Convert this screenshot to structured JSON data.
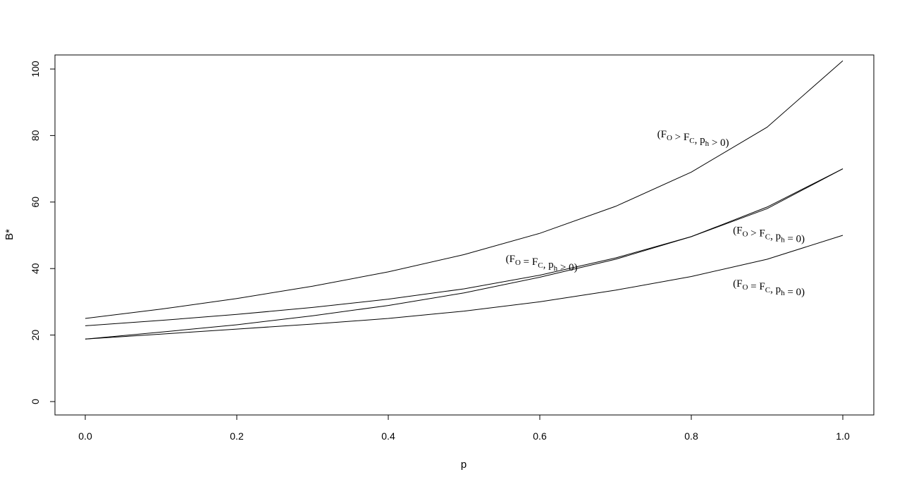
{
  "chart_data": {
    "type": "line",
    "title": "",
    "xlabel": "p",
    "ylabel": "B*",
    "xlim": [
      0.0,
      1.0
    ],
    "ylim": [
      0,
      100
    ],
    "grid": false,
    "x_ticks": [
      "0.0",
      "0.2",
      "0.4",
      "0.6",
      "0.8",
      "1.0"
    ],
    "y_ticks": [
      "0",
      "20",
      "40",
      "60",
      "80",
      "100"
    ],
    "x": [
      0.0,
      0.1,
      0.2,
      0.3,
      0.4,
      0.5,
      0.6,
      0.7,
      0.8,
      0.9,
      1.0
    ],
    "series": [
      {
        "values": [
          25.0,
          27.8,
          31.0,
          34.7,
          39.0,
          44.2,
          50.6,
          58.7,
          69.0,
          82.5,
          102.5
        ]
      },
      {
        "values": [
          22.8,
          24.4,
          26.2,
          28.3,
          30.8,
          33.9,
          38.0,
          43.2,
          49.6,
          58.0,
          70.0
        ]
      },
      {
        "values": [
          18.8,
          20.9,
          23.1,
          25.8,
          28.9,
          32.7,
          37.4,
          42.8,
          49.6,
          58.5,
          70.0
        ]
      },
      {
        "values": [
          18.8,
          20.3,
          21.8,
          23.3,
          25.0,
          27.2,
          30.0,
          33.5,
          37.6,
          42.8,
          50.0
        ]
      }
    ],
    "annotations": [
      {
        "x": 0.755,
        "y": 79.5,
        "f1": "F",
        "s1": "O",
        "op": " > ",
        "f2": "F",
        "s2": "C",
        "mid": ", p",
        "s3": "h",
        "tail": " > 0"
      },
      {
        "x": 0.555,
        "y": 42.0,
        "f1": "F",
        "s1": "O",
        "op": " = ",
        "f2": "F",
        "s2": "C",
        "mid": ", p",
        "s3": "h",
        "tail": " > 0"
      },
      {
        "x": 0.855,
        "y": 50.5,
        "f1": "F",
        "s1": "O",
        "op": " > ",
        "f2": "F",
        "s2": "C",
        "mid": ", p",
        "s3": "h",
        "tail": " = 0"
      },
      {
        "x": 0.855,
        "y": 34.5,
        "f1": "F",
        "s1": "O",
        "op": " = ",
        "f2": "F",
        "s2": "C",
        "mid": ", p",
        "s3": "h",
        "tail": " = 0"
      }
    ]
  }
}
